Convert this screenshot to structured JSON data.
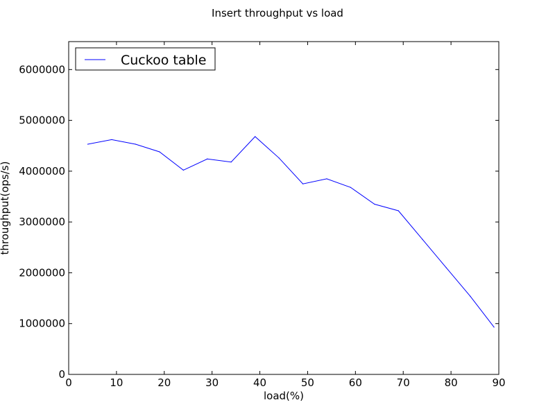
{
  "chart_data": {
    "type": "line",
    "title": "Insert throughput vs load",
    "xlabel": "load(%)",
    "ylabel": "throughput(ops/s)",
    "xlim": [
      0,
      90
    ],
    "ylim": [
      0,
      6550000
    ],
    "x_ticks": [
      0,
      10,
      20,
      30,
      40,
      50,
      60,
      70,
      80,
      90
    ],
    "x_tick_labels": [
      "0",
      "10",
      "20",
      "30",
      "40",
      "50",
      "60",
      "70",
      "80",
      "90"
    ],
    "y_ticks": [
      0,
      1000000,
      2000000,
      3000000,
      4000000,
      5000000,
      6000000
    ],
    "y_tick_labels": [
      "0",
      "1000000",
      "2000000",
      "3000000",
      "4000000",
      "5000000",
      "6000000"
    ],
    "grid": false,
    "legend_position": "top-left",
    "series": [
      {
        "name": "Cuckoo table",
        "color": "#0000ff",
        "x": [
          4,
          9,
          14,
          19,
          24,
          29,
          34,
          39,
          44,
          49,
          54,
          59,
          64,
          69,
          74,
          79,
          84,
          89
        ],
        "y": [
          4530000,
          4620000,
          4530000,
          4380000,
          4020000,
          4240000,
          4180000,
          4680000,
          4260000,
          3750000,
          3850000,
          3680000,
          3350000,
          3220000,
          2660000,
          2100000,
          1540000,
          930000
        ]
      }
    ]
  }
}
